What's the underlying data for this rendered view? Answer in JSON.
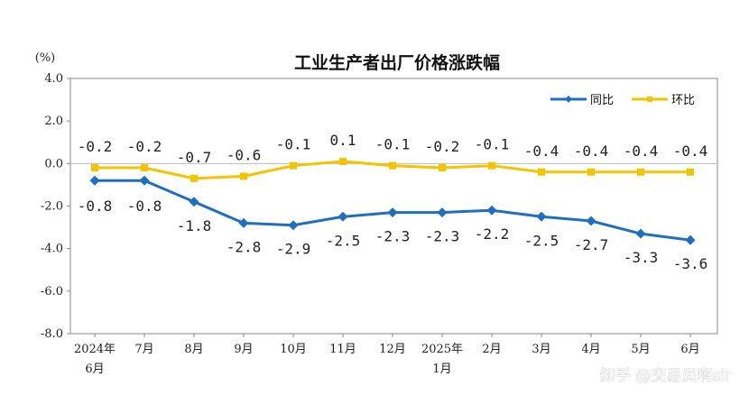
{
  "chart_data": {
    "type": "line",
    "title": "工业生产者出厂价格涨跌幅",
    "ylabel": "(%)",
    "ylim": [
      -8.0,
      4.0
    ],
    "yticks": [
      "4.0",
      "2.0",
      "0.0",
      "-2.0",
      "-4.0",
      "-6.0",
      "-8.0"
    ],
    "categories": [
      [
        "2024年",
        "6月"
      ],
      [
        "7月"
      ],
      [
        "8月"
      ],
      [
        "9月"
      ],
      [
        "10月"
      ],
      [
        "11月"
      ],
      [
        "12月"
      ],
      [
        "2025年",
        "1月"
      ],
      [
        "2月"
      ],
      [
        "3月"
      ],
      [
        "4月"
      ],
      [
        "5月"
      ],
      [
        "6月"
      ]
    ],
    "legend_position": "top-right",
    "grid": false,
    "series": [
      {
        "name": "同比",
        "color": "#1f6fc0",
        "marker": "diamond",
        "values": [
          -0.8,
          -0.8,
          -1.8,
          -2.8,
          -2.9,
          -2.5,
          -2.3,
          -2.3,
          -2.2,
          -2.5,
          -2.7,
          -3.3,
          -3.6
        ],
        "labels": [
          "-0.8",
          "-0.8",
          "-1.8",
          "-2.8",
          "-2.9",
          "-2.5",
          "-2.3",
          "-2.3",
          "-2.2",
          "-2.5",
          "-2.7",
          "-3.3",
          "-3.6"
        ]
      },
      {
        "name": "环比",
        "color": "#f5c400",
        "marker": "square",
        "values": [
          -0.2,
          -0.2,
          -0.7,
          -0.6,
          -0.1,
          0.1,
          -0.1,
          -0.2,
          -0.1,
          -0.4,
          -0.4,
          -0.4,
          -0.4
        ],
        "labels": [
          "-0.2",
          "-0.2",
          "-0.7",
          "-0.6",
          "-0.1",
          "0.1",
          "-0.1",
          "-0.2",
          "-0.1",
          "-0.4",
          "-0.4",
          "-0.4",
          "-0.4"
        ]
      }
    ]
  },
  "watermark": "知乎 @交易员啊sir"
}
